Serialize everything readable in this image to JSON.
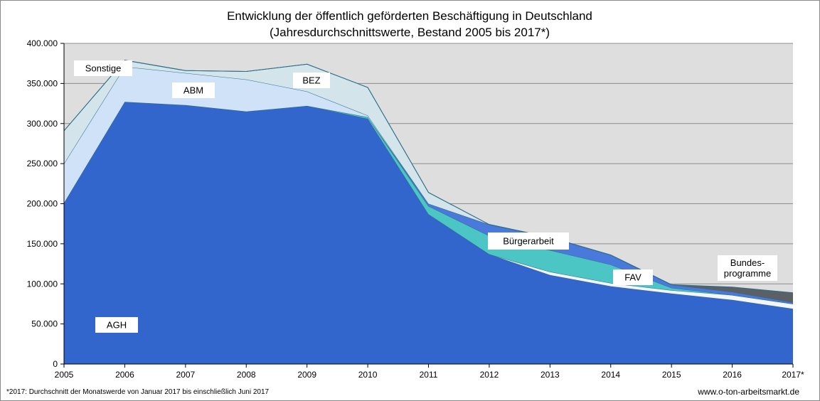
{
  "chart_data": {
    "type": "area",
    "stacked": true,
    "title_lines": [
      "Entwicklung der öffentlich geförderten Beschäftigung in Deutschland",
      "(Jahresdurchschnittswerte, Bestand 2005 bis 2017*)"
    ],
    "xlabel": "",
    "ylabel": "",
    "ylim": [
      0,
      400000
    ],
    "yticks": [
      0,
      50000,
      100000,
      150000,
      200000,
      250000,
      300000,
      350000,
      400000
    ],
    "ytick_labels": [
      "0",
      "50.000",
      "100.000",
      "150.000",
      "200.000",
      "250.000",
      "300.000",
      "350.000",
      "400.000"
    ],
    "x": [
      "2005",
      "2006",
      "2007",
      "2008",
      "2009",
      "2010",
      "2011",
      "2012",
      "2013",
      "2014",
      "2015",
      "2016",
      "2017*"
    ],
    "grid": "horizontal",
    "legend": "inline-labels",
    "series": [
      {
        "name": "AGH",
        "color": "#3366cc",
        "values": [
          201000,
          327000,
          323000,
          315000,
          322000,
          306000,
          187000,
          137000,
          111000,
          97000,
          88000,
          80000,
          69000
        ]
      },
      {
        "name": "FAV",
        "color": "#f2f6fc",
        "values": [
          0,
          0,
          0,
          0,
          0,
          0,
          0,
          0,
          4000,
          4000,
          4000,
          6000,
          6000
        ]
      },
      {
        "name": "Bürgerarbeit",
        "color": "#4cc5c5",
        "values": [
          0,
          0,
          0,
          0,
          0,
          2000,
          10000,
          23000,
          27000,
          23000,
          3000,
          0,
          0
        ]
      },
      {
        "name": "BEZ",
        "color": "#4a79dc",
        "values": [
          0,
          0,
          0,
          0,
          0,
          0,
          3000,
          14000,
          16000,
          12000,
          4000,
          4000,
          2000
        ]
      },
      {
        "name": "ABM",
        "color": "#cfe2f8",
        "values": [
          49000,
          44000,
          40000,
          40000,
          18000,
          2000,
          0,
          0,
          0,
          0,
          0,
          0,
          0
        ]
      },
      {
        "name": "Sonstige",
        "color": "#d3e5ea",
        "values": [
          41000,
          8000,
          3000,
          10000,
          34000,
          35000,
          14000,
          0,
          0,
          0,
          0,
          0,
          0
        ]
      },
      {
        "name": "Bundes-programme",
        "color": "#5a6066",
        "values": [
          0,
          0,
          0,
          0,
          0,
          0,
          0,
          0,
          0,
          0,
          0,
          6000,
          12000
        ]
      }
    ],
    "annotations": {
      "AGH": "AGH",
      "Sonstige": "Sonstige",
      "ABM": "ABM",
      "BEZ": "BEZ",
      "Buergerarbeit": "Bürgerarbeit",
      "FAV": "FAV",
      "Bundes_line1": "Bundes-",
      "Bundes_line2": "programme"
    },
    "colors": {
      "plot_background": "#dedede",
      "gridline": "#8c8c8c",
      "series_edge": "#2e6e8a"
    }
  },
  "footnote": "*2017: Durchschnitt der Monatswerde von Januar 2017 bis einschließlich Juni 2017",
  "source": "www.o-ton-arbeitsmarkt.de"
}
